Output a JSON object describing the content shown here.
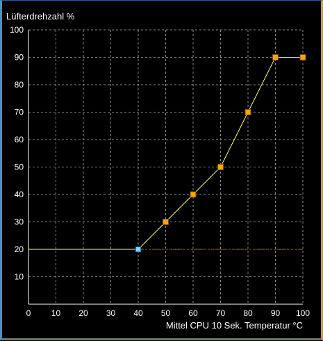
{
  "chart_data": {
    "type": "line",
    "ylabel": "Lüfterdrehzahl %",
    "xlabel": "Mittel CPU 10 Sek. Temperatur °C",
    "xlim": [
      0,
      100
    ],
    "ylim": [
      0,
      100
    ],
    "x_ticks": [
      0,
      10,
      20,
      30,
      40,
      50,
      60,
      70,
      80,
      90,
      100
    ],
    "y_ticks": [
      10,
      20,
      30,
      40,
      50,
      60,
      70,
      80,
      90,
      100
    ],
    "grid": true,
    "baseline": {
      "x": [
        0,
        40
      ],
      "y": 20
    },
    "threshold_line": {
      "y": 20,
      "from_x": 40,
      "to_x": 100
    },
    "points": [
      {
        "x": 40,
        "y": 20,
        "selected": true
      },
      {
        "x": 50,
        "y": 30
      },
      {
        "x": 60,
        "y": 40
      },
      {
        "x": 70,
        "y": 50
      },
      {
        "x": 80,
        "y": 70
      },
      {
        "x": 90,
        "y": 90
      },
      {
        "x": 100,
        "y": 90
      }
    ],
    "colors": {
      "background": "#000000",
      "grid": "#8a8a8a",
      "axes": "#ffffff",
      "curve": "#ffff66",
      "point_fill": "#ffa500",
      "point_stroke": "#7a4a00",
      "selected_point": "#7fd6ff",
      "threshold": "#d2462a",
      "text": "#ffffff"
    }
  }
}
